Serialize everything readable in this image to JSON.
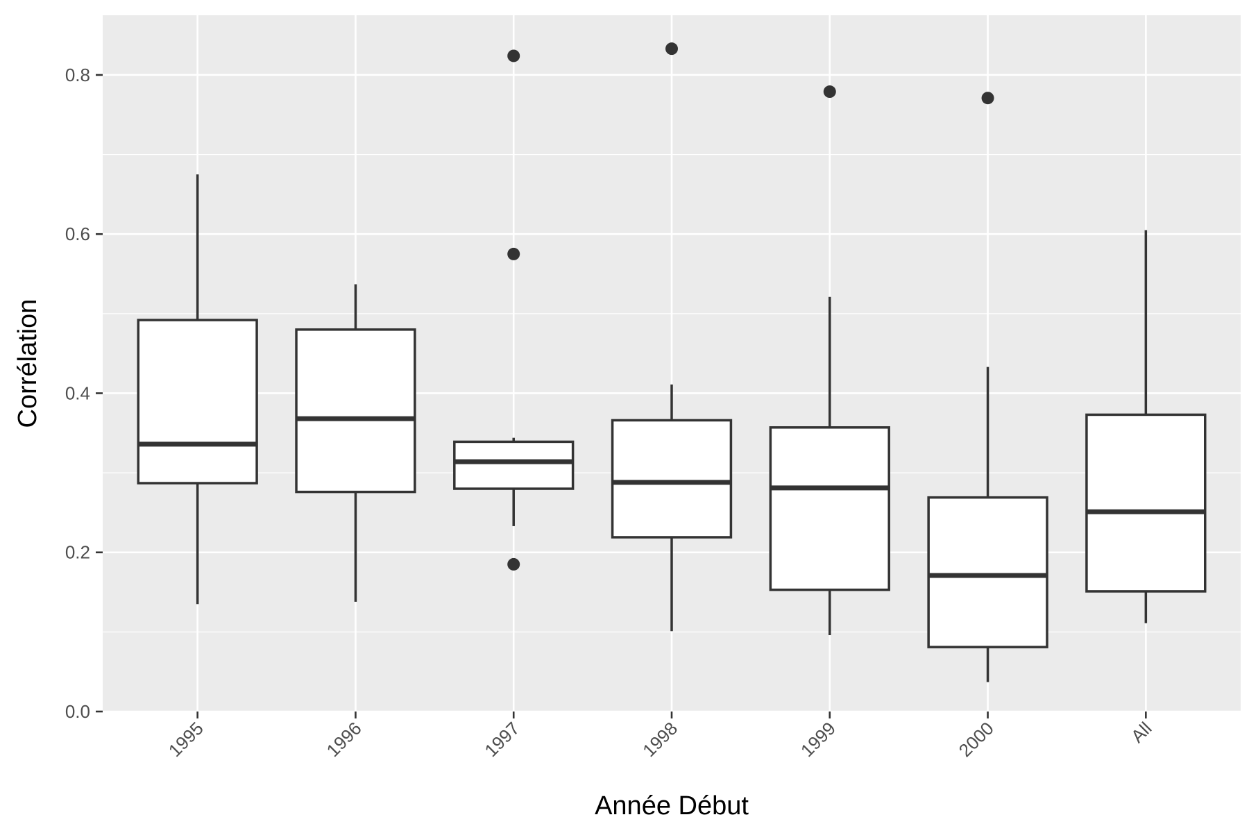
{
  "chart_data": {
    "type": "box",
    "title": "",
    "xlabel": "Année Début",
    "ylabel": "Corrélation",
    "ylim": [
      0.0,
      0.875
    ],
    "y_ticks": [
      "0.0",
      "0.2",
      "0.4",
      "0.6",
      "0.8"
    ],
    "grid": true,
    "legend": "none",
    "colors": {
      "panel_background": "#ebebeb",
      "grid": "#ffffff",
      "box_fill": "#ffffff",
      "box_line": "#333333",
      "axis_text": "#4d4d4d"
    },
    "categories": [
      "1995",
      "1996",
      "1997",
      "1998",
      "1999",
      "2000",
      "All"
    ],
    "boxes": [
      {
        "category": "1995",
        "whisker_low": 0.135,
        "q1": 0.287,
        "median": 0.336,
        "q3": 0.492,
        "whisker_high": 0.675,
        "outliers": []
      },
      {
        "category": "1996",
        "whisker_low": 0.138,
        "q1": 0.276,
        "median": 0.368,
        "q3": 0.48,
        "whisker_high": 0.537,
        "outliers": []
      },
      {
        "category": "1997",
        "whisker_low": 0.233,
        "q1": 0.28,
        "median": 0.314,
        "q3": 0.339,
        "whisker_high": 0.344,
        "outliers": [
          0.824,
          0.575,
          0.185
        ]
      },
      {
        "category": "1998",
        "whisker_low": 0.101,
        "q1": 0.219,
        "median": 0.288,
        "q3": 0.366,
        "whisker_high": 0.411,
        "outliers": [
          0.833
        ]
      },
      {
        "category": "1999",
        "whisker_low": 0.096,
        "q1": 0.153,
        "median": 0.281,
        "q3": 0.357,
        "whisker_high": 0.521,
        "outliers": [
          0.779
        ]
      },
      {
        "category": "2000",
        "whisker_low": 0.037,
        "q1": 0.081,
        "median": 0.171,
        "q3": 0.269,
        "whisker_high": 0.433,
        "outliers": [
          0.771
        ]
      },
      {
        "category": "All",
        "whisker_low": 0.111,
        "q1": 0.151,
        "median": 0.251,
        "q3": 0.373,
        "whisker_high": 0.605,
        "outliers": []
      }
    ]
  }
}
